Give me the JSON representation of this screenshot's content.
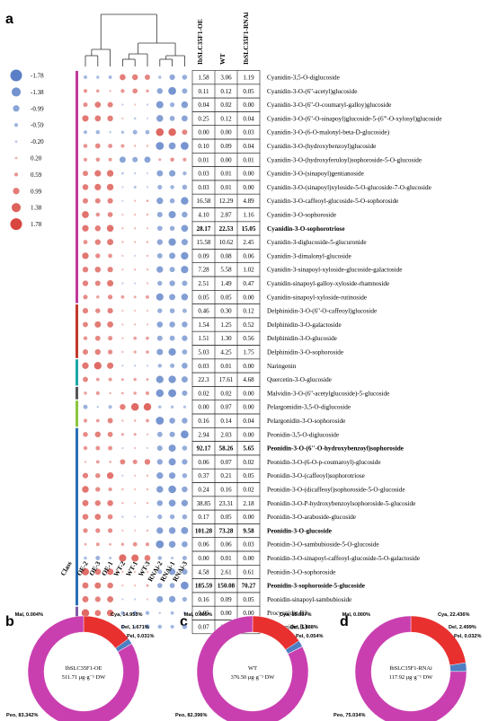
{
  "panels": {
    "a": "a",
    "b": "b",
    "c": "c",
    "d": "d"
  },
  "chart_data": [
    {
      "type": "heatmap",
      "title": "",
      "columns": [
        "OE-2",
        "OE-3",
        "OE-1",
        "WT-2",
        "WT-1",
        "WT-3",
        "RNAi-2",
        "RNAi-1",
        "RNAi-3"
      ],
      "class_label": "Class",
      "table_headers": [
        "IbSLC35F1-OE",
        "WT",
        "IbSLC35F1-RNAi"
      ],
      "legend": {
        "values": [
          "-1.78",
          "-1.38",
          "-0.99",
          "-0.59",
          "-0.20",
          "0.20",
          "0.59",
          "0.99",
          "1.38",
          "1.78"
        ]
      },
      "class_colors": {
        "Cya": "#c0399b",
        "Del": "#c0392b",
        "Nar": "#1aa8a8",
        "Mal": "#555555",
        "Pel": "#8cc63f",
        "Peo": "#2b6fb6",
        "Pro": "#7e5aa6"
      },
      "rows": [
        {
          "name": "Cyanidin-3,5-O-diglucoside",
          "cls": "Cya",
          "v": [
            "1.58",
            "3.06",
            "1.19"
          ]
        },
        {
          "name": "Cyanidin-3-O-(6''-acetyl)glucoside",
          "cls": "Cya",
          "v": [
            "0.11",
            "0.12",
            "0.05"
          ]
        },
        {
          "name": "Cyanidin-3-O-(6''-O-coumaryl-galloy)glucoside",
          "cls": "Cya",
          "v": [
            "0.04",
            "0.02",
            "0.00"
          ]
        },
        {
          "name": "Cyanidin-3-O-(6''-O-sinapoyl)glucoside-5-(6'''-O-xylosyl)glucoside",
          "cls": "Cya",
          "v": [
            "0.25",
            "0.12",
            "0.04"
          ]
        },
        {
          "name": "Cyanidin-3-O-(6-O-malonyl-beta-D-glucoside)",
          "cls": "Cya",
          "v": [
            "0.00",
            "0.00",
            "0.03"
          ]
        },
        {
          "name": "Cyanidin-3-O-(hydroxybenzoyl)glucoside",
          "cls": "Cya",
          "v": [
            "0.10",
            "0.09",
            "0.04"
          ]
        },
        {
          "name": "Cyanidin-3-O-(hydroxyferuloyl)sophoroside-5-O-glucoside",
          "cls": "Cya",
          "v": [
            "0.01",
            "0.00",
            "0.01"
          ]
        },
        {
          "name": "Cyanidin-3-O-(sinapoyl)gentianoside",
          "cls": "Cya",
          "v": [
            "0.03",
            "0.01",
            "0.00"
          ]
        },
        {
          "name": "Cyanidin-3-O-(sinapoyl)xyloside-5-O-glucoside-7-O-glucoside",
          "cls": "Cya",
          "v": [
            "0.03",
            "0.01",
            "0.00"
          ]
        },
        {
          "name": "Cyanidin-3-O-caffeoyl-glucoside-5-O-sophoroside",
          "cls": "Cya",
          "v": [
            "16.58",
            "12.29",
            "4.89"
          ]
        },
        {
          "name": "Cyanidin-3-O-sophoroside",
          "cls": "Cya",
          "v": [
            "4.10",
            "2.87",
            "1.16"
          ]
        },
        {
          "name": "Cyanidin-3-O-sophorotriose",
          "cls": "Cya",
          "v": [
            "28.17",
            "22.53",
            "15.05"
          ],
          "bold": true
        },
        {
          "name": "Cyanidin-3-diglucoside-5-glucuronide",
          "cls": "Cya",
          "v": [
            "15.58",
            "10.62",
            "2.45"
          ]
        },
        {
          "name": "Cyanidin-3-dimalonyl-glucoside",
          "cls": "Cya",
          "v": [
            "0.09",
            "0.08",
            "0.06"
          ]
        },
        {
          "name": "Cyanidin-3-sinapoyl-xyloside-glucoside-galactoside",
          "cls": "Cya",
          "v": [
            "7.28",
            "5.58",
            "1.02"
          ]
        },
        {
          "name": "Cyanidin-sinapoyl-galloy-xyloside-rhamnoside",
          "cls": "Cya",
          "v": [
            "2.51",
            "1.49",
            "0.47"
          ]
        },
        {
          "name": "Cyanidin-sinapoyl-xyloside-rutinoside",
          "cls": "Cya",
          "v": [
            "0.05",
            "0.05",
            "0.00"
          ]
        },
        {
          "name": "Delphinidin-3-O-(6''-O-caffeoyl)glucoside",
          "cls": "Del",
          "v": [
            "0.46",
            "0.30",
            "0.12"
          ]
        },
        {
          "name": "Delphinidin-3-O-galactoside",
          "cls": "Del",
          "v": [
            "1.54",
            "1.25",
            "0.52"
          ]
        },
        {
          "name": "Delphinidin-3-O-glucoside",
          "cls": "Del",
          "v": [
            "1.51",
            "1.30",
            "0.56"
          ]
        },
        {
          "name": "Delphinidin-3-O-sophoroside",
          "cls": "Del",
          "v": [
            "5.03",
            "4.25",
            "1.75"
          ]
        },
        {
          "name": "Naringenin",
          "cls": "Nar",
          "v": [
            "0.03",
            "0.01",
            "0.00"
          ]
        },
        {
          "name": "Quercetin-3-O-glucoside",
          "cls": "Nar",
          "v": [
            "22.3",
            "17.61",
            "4.68"
          ]
        },
        {
          "name": "Malvidin-3-O-(6''-acetylglucoside)-5-glucoside",
          "cls": "Mal",
          "v": [
            "0.02",
            "0.02",
            "0.00"
          ]
        },
        {
          "name": "Pelargomidin-3,5-O-diglucoside",
          "cls": "Pel",
          "v": [
            "0.00",
            "0.07",
            "0.00"
          ]
        },
        {
          "name": "Pelargonidin-3-O-sophoroside",
          "cls": "Pel",
          "v": [
            "0.16",
            "0.14",
            "0.04"
          ]
        },
        {
          "name": "Peonidin-3,5-O-diglucoside",
          "cls": "Peo",
          "v": [
            "2.94",
            "2.03",
            "0.00"
          ]
        },
        {
          "name": "Peonidin-3-O-(6''-O-hydroxybenzoyl)sophoroside",
          "cls": "Peo",
          "v": [
            "92.17",
            "58.26",
            "5.65"
          ],
          "bold": true
        },
        {
          "name": "Peonidin-3-O-(6-O-p-coumaroyl)-glucoside",
          "cls": "Peo",
          "v": [
            "0.06",
            "0.07",
            "0.02"
          ]
        },
        {
          "name": "Peonidin-3-O-(caffeoyl)sophorotriose",
          "cls": "Peo",
          "v": [
            "0.37",
            "0.21",
            "0.05"
          ]
        },
        {
          "name": "Peonidin-3-O-(dicaffeoyl)sophoroside-5-O-glucoside",
          "cls": "Peo",
          "v": [
            "0.24",
            "0.16",
            "0.02"
          ]
        },
        {
          "name": "Peonidin-3-O-P-hydroxybenzoylsophoroside-5-glucoside",
          "cls": "Peo",
          "v": [
            "38.85",
            "23.31",
            "2.18"
          ]
        },
        {
          "name": "Peonidin-3-O-araboside-glucoside",
          "cls": "Peo",
          "v": [
            "0.17",
            "0.05",
            "0.00"
          ]
        },
        {
          "name": "Peonidin-3-O-glucoside",
          "cls": "Peo",
          "v": [
            "101.28",
            "73.28",
            "9.58"
          ],
          "bold": true
        },
        {
          "name": "Peonidin-3-O-sambubioside-5-O-glucoside",
          "cls": "Peo",
          "v": [
            "0.06",
            "0.06",
            "0.03"
          ]
        },
        {
          "name": "Peonidin-3-O-sinapoyl-caffeoyl-glucoside-5-O-galactoside",
          "cls": "Peo",
          "v": [
            "0.00",
            "0.01",
            "0.00"
          ]
        },
        {
          "name": "Peonidin-3-O-sophoroside",
          "cls": "Peo",
          "v": [
            "4.58",
            "2.61",
            "0.61"
          ]
        },
        {
          "name": "Peonidin-3-sophoroside-5-glucoside",
          "cls": "Peo",
          "v": [
            "185.59",
            "150.08",
            "70.27"
          ],
          "bold": true
        },
        {
          "name": "Peonidin-sinapoyl-sambubioside",
          "cls": "Peo",
          "v": [
            "0.16",
            "0.09",
            "0.05"
          ]
        },
        {
          "name": "Procyanidin B2",
          "cls": "Pro",
          "v": [
            "0.05",
            "0.00",
            "0.00"
          ]
        },
        {
          "name": "Procyanidin B3",
          "cls": "Pro",
          "v": [
            "0.07",
            "0.00",
            "0.00"
          ]
        }
      ]
    },
    {
      "type": "pie",
      "panel": "b",
      "center": [
        "IbSLC35F1-OE",
        "511.71 μg·g⁻¹ DW"
      ],
      "slices": [
        {
          "cls": "Cya",
          "value": 14.953,
          "label": "Cya, 14.953%"
        },
        {
          "cls": "Del",
          "value": 1.671,
          "label": "Del, 1.671%"
        },
        {
          "cls": "Pel",
          "value": 0.031,
          "label": "Pel, 0.031%"
        },
        {
          "cls": "Peo",
          "value": 83.342,
          "label": "Peo, 83.342%"
        },
        {
          "cls": "Mal",
          "value": 0.004,
          "label": "Mal, 0.004%"
        }
      ]
    },
    {
      "type": "pie",
      "panel": "c",
      "center": [
        "WT",
        "376.50 μg·g⁻¹ DW"
      ],
      "slices": [
        {
          "cls": "Cya",
          "value": 15.657,
          "label": "Cya, 15.657%"
        },
        {
          "cls": "Del",
          "value": 1.888,
          "label": "Del, 1.888%"
        },
        {
          "cls": "Pel",
          "value": 0.054,
          "label": "Pel, 0.054%"
        },
        {
          "cls": "Peo",
          "value": 82.396,
          "label": "Peo, 82.396%"
        },
        {
          "cls": "Mal",
          "value": 0.005,
          "label": "Mal, 0.005%"
        }
      ]
    },
    {
      "type": "pie",
      "panel": "d",
      "center": [
        "IbSLC35F1-RNAi",
        "117.92 μg·g⁻¹ DW"
      ],
      "slices": [
        {
          "cls": "Cya",
          "value": 22.436,
          "label": "Cya, 22.436%"
        },
        {
          "cls": "Del",
          "value": 2.499,
          "label": "Del, 2.499%"
        },
        {
          "cls": "Pel",
          "value": 0.032,
          "label": "Pel, 0.032%"
        },
        {
          "cls": "Peo",
          "value": 75.034,
          "label": "Peo, 75.034%"
        },
        {
          "cls": "Mal",
          "value": 0.0,
          "label": "Mal, 0.000%"
        }
      ]
    }
  ]
}
